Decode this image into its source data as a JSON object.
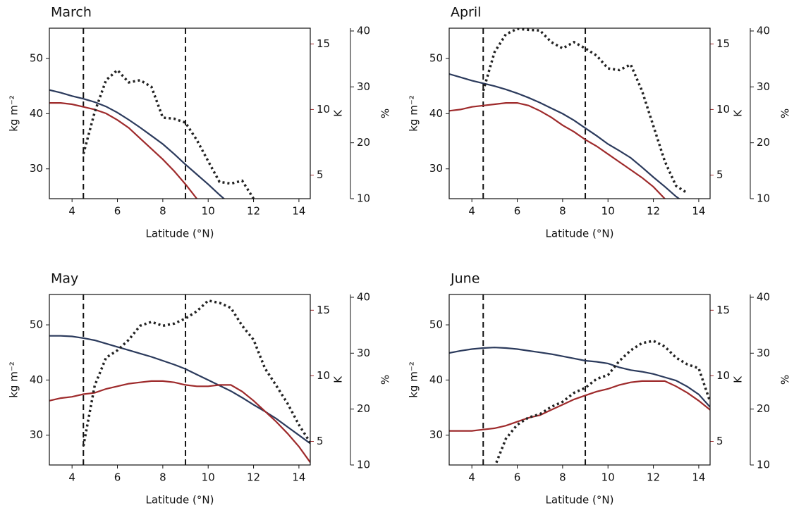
{
  "chart_data": [
    {
      "type": "line",
      "title": "March",
      "xlabel": "Latitude (°N)",
      "ylabel": "kg m⁻²",
      "y2label": "K",
      "y3label": "%",
      "xlim": [
        3,
        14.5
      ],
      "xticks": [
        4,
        6,
        8,
        10,
        12,
        14
      ],
      "ylim": [
        24.6,
        55.5
      ],
      "yticks": [
        30,
        40,
        50
      ],
      "y2lim": [
        3.2,
        16.2
      ],
      "y2ticks": [
        5,
        10,
        15
      ],
      "y3lim": [
        10,
        40.5
      ],
      "y3ticks": [
        10,
        20,
        30,
        40
      ],
      "vlines": [
        4.5,
        9
      ],
      "x": [
        3,
        3.5,
        4,
        4.5,
        5,
        5.5,
        6,
        6.5,
        7,
        7.5,
        8,
        8.5,
        9,
        9.5,
        10,
        10.5,
        11,
        11.5,
        12,
        12.5,
        13,
        13.5,
        14,
        14.5
      ],
      "series": [
        {
          "color": "#2b3a5c",
          "values": [
            44.3,
            43.8,
            43.2,
            42.7,
            42.1,
            41.3,
            40.2,
            38.9,
            37.5,
            36.0,
            34.5,
            32.7,
            30.8,
            29.0,
            27.2,
            25.3,
            23.5,
            null,
            null,
            null,
            null,
            null,
            null,
            null
          ]
        },
        {
          "color": "#9e2a2b",
          "axis": "y2",
          "values": [
            10.5,
            10.5,
            10.4,
            10.2,
            10.0,
            9.7,
            9.2,
            8.6,
            7.8,
            7.0,
            6.2,
            5.3,
            4.3,
            3.2,
            2.1,
            null,
            null,
            null,
            null,
            null,
            null,
            null,
            null,
            null
          ]
        },
        {
          "color": "#222222",
          "axis": "y3",
          "style": "dotted",
          "values": [
            null,
            null,
            null,
            18,
            25.5,
            31.2,
            33,
            30.8,
            31.2,
            30,
            24.5,
            24.3,
            23.6,
            20.5,
            16.7,
            13,
            12.7,
            13.2,
            10,
            null,
            null,
            null,
            null,
            null
          ]
        }
      ]
    },
    {
      "type": "line",
      "title": "April",
      "xlabel": "Latitude (°N)",
      "ylabel": "kg m⁻²",
      "y2label": "K",
      "y3label": "%",
      "xlim": [
        3,
        14.5
      ],
      "xticks": [
        4,
        6,
        8,
        10,
        12,
        14
      ],
      "ylim": [
        24.6,
        55.5
      ],
      "yticks": [
        30,
        40,
        50
      ],
      "y2lim": [
        3.2,
        16.2
      ],
      "y2ticks": [
        5,
        10,
        15
      ],
      "y3lim": [
        10,
        40.5
      ],
      "y3ticks": [
        10,
        20,
        30,
        40
      ],
      "vlines": [
        4.5,
        9
      ],
      "x": [
        3,
        3.5,
        4,
        4.5,
        5,
        5.5,
        6,
        6.5,
        7,
        7.5,
        8,
        8.5,
        9,
        9.5,
        10,
        10.5,
        11,
        11.5,
        12,
        12.5,
        13,
        13.5,
        14,
        14.5
      ],
      "series": [
        {
          "color": "#2b3a5c",
          "values": [
            47.2,
            46.6,
            46,
            45.5,
            45,
            44.4,
            43.7,
            42.9,
            42,
            41,
            40,
            38.8,
            37.4,
            36,
            34.5,
            33.3,
            32,
            30.3,
            28.5,
            26.8,
            25,
            23.5,
            null,
            null
          ]
        },
        {
          "color": "#9e2a2b",
          "axis": "y2",
          "values": [
            9.9,
            10.0,
            10.2,
            10.3,
            10.4,
            10.5,
            10.5,
            10.3,
            9.9,
            9.4,
            8.8,
            8.3,
            7.7,
            7.2,
            6.6,
            6.0,
            5.4,
            4.8,
            4.1,
            3.2,
            2.3,
            null,
            null,
            null
          ]
        },
        {
          "color": "#222222",
          "axis": "y3",
          "style": "dotted",
          "values": [
            null,
            null,
            null,
            29.3,
            36.2,
            39.4,
            40.4,
            40.2,
            40.1,
            38,
            36.9,
            38,
            36.9,
            35.6,
            33.3,
            33,
            34,
            29.3,
            23,
            16.7,
            12.3,
            11,
            null,
            null
          ]
        }
      ]
    },
    {
      "type": "line",
      "title": "May",
      "xlabel": "Latitude (°N)",
      "ylabel": "kg m⁻²",
      "y2label": "K",
      "y3label": "%",
      "xlim": [
        3,
        14.5
      ],
      "xticks": [
        4,
        6,
        8,
        10,
        12,
        14
      ],
      "ylim": [
        24.6,
        55.5
      ],
      "yticks": [
        30,
        40,
        50
      ],
      "y2lim": [
        3.2,
        16.2
      ],
      "y2ticks": [
        5,
        10,
        15
      ],
      "y3lim": [
        10,
        40.5
      ],
      "y3ticks": [
        10,
        20,
        30,
        40
      ],
      "vlines": [
        4.5,
        9
      ],
      "x": [
        3,
        3.5,
        4,
        4.5,
        5,
        5.5,
        6,
        6.5,
        7,
        7.5,
        8,
        8.5,
        9,
        9.5,
        10,
        10.5,
        11,
        11.5,
        12,
        12.5,
        13,
        13.5,
        14,
        14.5
      ],
      "series": [
        {
          "color": "#2b3a5c",
          "values": [
            48,
            48,
            47.9,
            47.6,
            47.2,
            46.6,
            46,
            45.4,
            44.8,
            44.2,
            43.5,
            42.8,
            42,
            41,
            40,
            39,
            38,
            36.8,
            35.5,
            34.3,
            33,
            31.5,
            30,
            28.5
          ]
        },
        {
          "color": "#9e2a2b",
          "axis": "y2",
          "values": [
            8.1,
            8.3,
            8.4,
            8.6,
            8.7,
            9.0,
            9.2,
            9.4,
            9.5,
            9.6,
            9.6,
            9.5,
            9.3,
            9.2,
            9.2,
            9.3,
            9.3,
            8.8,
            8.1,
            7.3,
            6.5,
            5.6,
            4.6,
            3.4
          ]
        },
        {
          "color": "#222222",
          "axis": "y3",
          "style": "dotted",
          "values": [
            null,
            null,
            null,
            13.4,
            24.2,
            29.2,
            30.5,
            32.4,
            34.9,
            35.6,
            34.9,
            35.3,
            36.2,
            37.5,
            39.4,
            39,
            38.1,
            34.9,
            32.4,
            27.3,
            24.2,
            21,
            17.2,
            14
          ]
        }
      ]
    },
    {
      "type": "line",
      "title": "June",
      "xlabel": "Latitude (°N)",
      "ylabel": "kg m⁻²",
      "y2label": "K",
      "y3label": "%",
      "xlim": [
        3,
        14.5
      ],
      "xticks": [
        4,
        6,
        8,
        10,
        12,
        14
      ],
      "ylim": [
        24.6,
        55.5
      ],
      "yticks": [
        30,
        40,
        50
      ],
      "y2lim": [
        3.2,
        16.2
      ],
      "y2ticks": [
        5,
        10,
        15
      ],
      "y3lim": [
        10,
        40.5
      ],
      "y3ticks": [
        10,
        20,
        30,
        40
      ],
      "vlines": [
        4.5,
        9
      ],
      "x": [
        3,
        3.5,
        4,
        4.5,
        5,
        5.5,
        6,
        6.5,
        7,
        7.5,
        8,
        8.5,
        9,
        9.5,
        10,
        10.5,
        11,
        11.5,
        12,
        12.5,
        13,
        13.5,
        14,
        14.5
      ],
      "series": [
        {
          "color": "#2b3a5c",
          "values": [
            44.9,
            45.3,
            45.6,
            45.8,
            45.9,
            45.8,
            45.6,
            45.3,
            45.0,
            44.7,
            44.3,
            43.9,
            43.5,
            43.3,
            43,
            42.3,
            41.8,
            41.5,
            41.1,
            40.5,
            39.9,
            38.8,
            37.4,
            35.1
          ]
        },
        {
          "color": "#9e2a2b",
          "axis": "y2",
          "values": [
            5.8,
            5.8,
            5.8,
            5.9,
            6.0,
            6.2,
            6.5,
            6.8,
            7.0,
            7.4,
            7.8,
            8.2,
            8.5,
            8.8,
            9.0,
            9.3,
            9.5,
            9.6,
            9.6,
            9.6,
            9.2,
            8.7,
            8.1,
            7.4
          ]
        },
        {
          "color": "#222222",
          "axis": "y3",
          "style": "dotted",
          "values": [
            null,
            null,
            null,
            null,
            9.6,
            14.7,
            17.2,
            18.5,
            19.1,
            20.4,
            21.3,
            22.9,
            23.8,
            25.4,
            26.1,
            28.6,
            30.5,
            31.8,
            32.2,
            31.2,
            29.2,
            28,
            27.3,
            21.3
          ]
        }
      ]
    }
  ]
}
